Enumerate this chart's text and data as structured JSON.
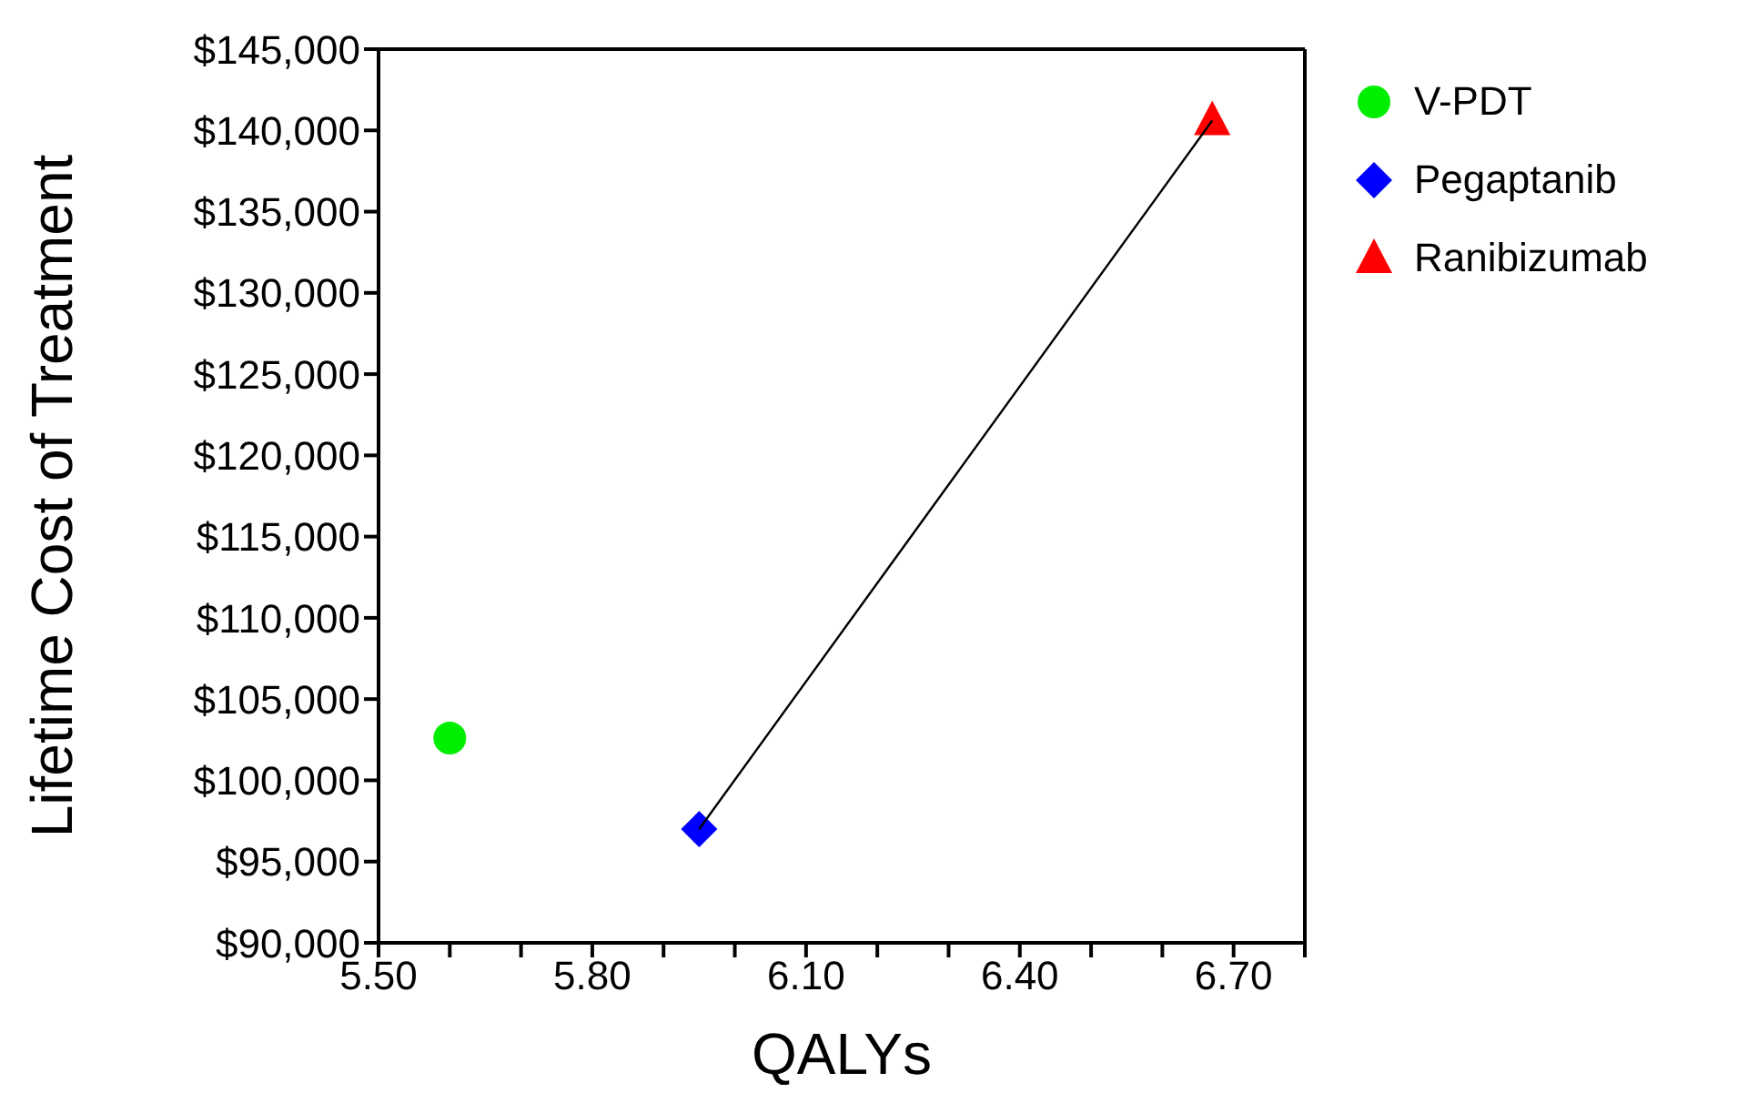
{
  "chart_data": {
    "type": "scatter",
    "xlabel": "QALYs",
    "ylabel": "Lifetime Cost of Treatment",
    "xlim": [
      5.5,
      6.8
    ],
    "xticks": [
      {
        "value": 5.5,
        "label": "5.50"
      },
      {
        "value": 5.6,
        "label": null
      },
      {
        "value": 5.7,
        "label": null
      },
      {
        "value": 5.8,
        "label": "5.80"
      },
      {
        "value": 5.9,
        "label": null
      },
      {
        "value": 6.0,
        "label": null
      },
      {
        "value": 6.1,
        "label": "6.10"
      },
      {
        "value": 6.2,
        "label": null
      },
      {
        "value": 6.3,
        "label": null
      },
      {
        "value": 6.4,
        "label": "6.40"
      },
      {
        "value": 6.5,
        "label": null
      },
      {
        "value": 6.6,
        "label": null
      },
      {
        "value": 6.7,
        "label": "6.70"
      },
      {
        "value": 6.8,
        "label": null
      }
    ],
    "ylim": [
      90000,
      145000
    ],
    "yticks": [
      {
        "value": 90000,
        "label": "$90,000"
      },
      {
        "value": 95000,
        "label": "$95,000"
      },
      {
        "value": 100000,
        "label": "$100,000"
      },
      {
        "value": 105000,
        "label": "$105,000"
      },
      {
        "value": 110000,
        "label": "$110,000"
      },
      {
        "value": 115000,
        "label": "$115,000"
      },
      {
        "value": 120000,
        "label": "$120,000"
      },
      {
        "value": 125000,
        "label": "$125,000"
      },
      {
        "value": 130000,
        "label": "$130,000"
      },
      {
        "value": 135000,
        "label": "$135,000"
      },
      {
        "value": 140000,
        "label": "$140,000"
      },
      {
        "value": 145000,
        "label": "$145,000"
      }
    ],
    "legend": "top right",
    "series": [
      {
        "type": "line",
        "color": "#000000",
        "marker": "none",
        "x": [
          5.95,
          6.67
        ],
        "values": [
          97000,
          140600
        ]
      },
      {
        "name": "V-PDT",
        "color": "#00ee00",
        "marker": "circle",
        "x": [
          5.6
        ],
        "values": [
          102600
        ]
      },
      {
        "name": "Pegaptanib",
        "color": "#0000ff",
        "marker": "diamond",
        "x": [
          5.95
        ],
        "values": [
          97000
        ]
      },
      {
        "name": "Ranibizumab",
        "color": "#ff0000",
        "marker": "triangle",
        "x": [
          6.67
        ],
        "values": [
          140600
        ]
      }
    ]
  }
}
